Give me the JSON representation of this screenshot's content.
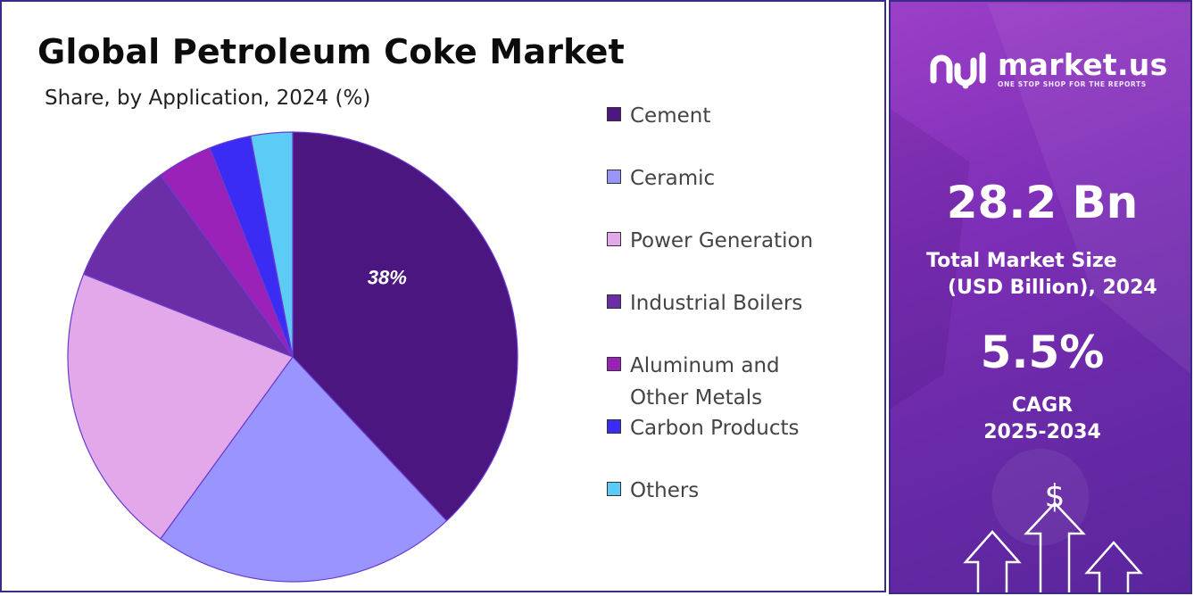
{
  "title": "Global Petroleum Coke Market",
  "subtitle": "Share, by Application, 2024 (%)",
  "chart_data": {
    "type": "pie",
    "title": "Global Petroleum Coke Market",
    "subtitle": "Share, by Application, 2024 (%)",
    "categories": [
      "Cement",
      "Ceramic",
      "Power Generation",
      "Industrial Boilers",
      "Aluminum and Other Metals",
      "Carbon Products",
      "Others"
    ],
    "values": [
      38,
      22,
      21,
      9,
      4,
      3,
      3
    ],
    "colors": [
      "#4b1680",
      "#9a94ff",
      "#e2a8ea",
      "#6b2ea6",
      "#9b22b8",
      "#3a2cf2",
      "#5ccbf5"
    ],
    "data_labels": [
      "38%",
      "",
      "",
      "",
      "",
      "",
      ""
    ],
    "legend_position": "right"
  },
  "legend": [
    {
      "label": "Cement",
      "color": "#4b1680"
    },
    {
      "label": "Ceramic",
      "color": "#9a94ff"
    },
    {
      "label": "Power Generation",
      "color": "#e2a8ea"
    },
    {
      "label": "Industrial Boilers",
      "color": "#6b2ea6"
    },
    {
      "label": "Aluminum and Other Metals",
      "color": "#9b22b8"
    },
    {
      "label": "Carbon Products",
      "color": "#3a2cf2"
    },
    {
      "label": "Others",
      "color": "#5ccbf5"
    }
  ],
  "sidebar": {
    "brand_name": "market.us",
    "brand_tagline": "ONE STOP SHOP FOR THE REPORTS",
    "market_size_value": "28.2 Bn",
    "market_size_label_1": "Total Market Size",
    "market_size_label_2": "(USD Billion), 2024",
    "cagr_value": "5.5%",
    "cagr_label_1": "CAGR",
    "cagr_label_2": "2025-2034",
    "currency_symbol": "$"
  }
}
